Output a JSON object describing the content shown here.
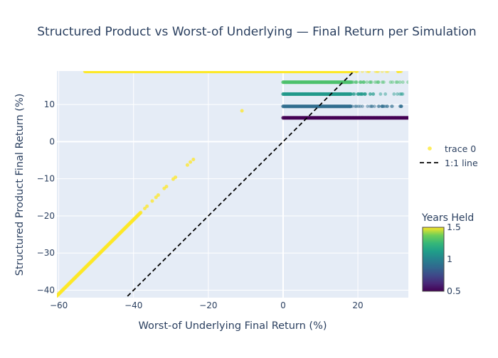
{
  "chart_data": {
    "type": "scatter",
    "title": "Structured Product vs Worst-of Underlying — Final Return per Simulation",
    "xlabel": "Worst-of Underlying Final Return (%)",
    "ylabel": "Structured Product Final Return (%)",
    "xlim": [
      -60.5,
      33.5
    ],
    "ylim": [
      -42,
      19
    ],
    "x_ticks": [
      -60,
      -40,
      -20,
      0,
      20
    ],
    "y_ticks": [
      -40,
      -30,
      -20,
      -10,
      0,
      10
    ],
    "x_tick_labels": [
      "−60",
      "−40",
      "−20",
      "0",
      "20"
    ],
    "y_tick_labels": [
      "−40",
      "−30",
      "−20",
      "−10",
      "0",
      "10"
    ],
    "grid": true,
    "legend_position": "right",
    "series": [
      {
        "name": "trace 0",
        "kind": "markers",
        "bands": [
          {
            "x_range": [
              0,
              33.5
            ],
            "y": 6.4,
            "years_held": 0.5
          },
          {
            "x_range": [
              0,
              33.5
            ],
            "y": 9.5,
            "years_held": 0.9
          },
          {
            "x_range": [
              0,
              33.5
            ],
            "y": 12.8,
            "years_held": 1.1
          },
          {
            "x_range": [
              0,
              33.5
            ],
            "y": 16.0,
            "years_held": 1.3
          },
          {
            "x_range": [
              -53,
              33.5
            ],
            "y": 18.9,
            "years_held": 1.5
          }
        ],
        "loss_line": {
          "x_range": [
            -60.5,
            -23.5
          ],
          "slope": 1.0,
          "intercept": 19.0,
          "years_held": 1.5
        },
        "scattered_points": [
          {
            "x": -24,
            "y": -4.8
          },
          {
            "x": -24.8,
            "y": -5.5
          },
          {
            "x": -25.6,
            "y": -6.3
          },
          {
            "x": -28.8,
            "y": -9.6
          },
          {
            "x": -29.4,
            "y": -10.1
          },
          {
            "x": -31.2,
            "y": -12.1
          },
          {
            "x": -31.8,
            "y": -12.6
          },
          {
            "x": -33.4,
            "y": -14.4
          },
          {
            "x": -34,
            "y": -15
          },
          {
            "x": -35,
            "y": -16
          },
          {
            "x": -36.4,
            "y": -17.4
          },
          {
            "x": -37,
            "y": -18
          },
          {
            "x": -11,
            "y": 8.3
          }
        ]
      },
      {
        "name": "1:1 line",
        "kind": "dashed-line",
        "x": [
          -60.5,
          33.5
        ],
        "y": [
          -60.5,
          33.5
        ]
      }
    ],
    "colorbar": {
      "title": "Years Held",
      "range": [
        0.5,
        1.5
      ],
      "tick_values": [
        0.5,
        1,
        1.5
      ],
      "tick_labels": [
        "0.5",
        "1",
        "1.5"
      ],
      "colorscale": "viridis"
    },
    "colors": {
      "plot_background": "#e5ecf6",
      "grid": "#ffffff",
      "text": "#2a3f5f",
      "one_to_one_line": "#000000"
    }
  }
}
